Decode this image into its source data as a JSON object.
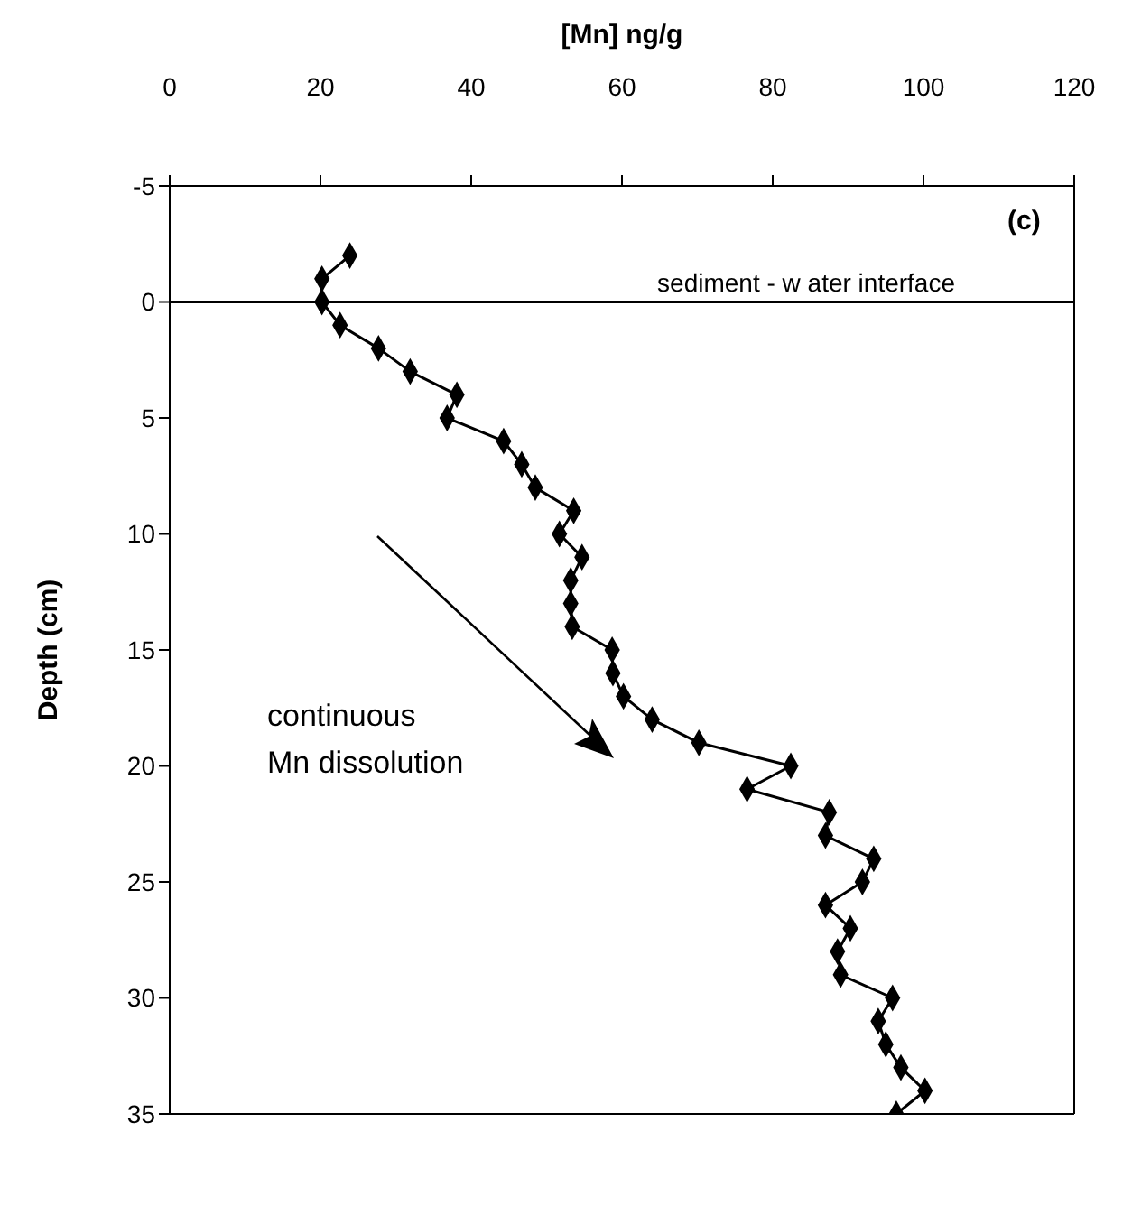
{
  "chart_data": {
    "type": "line",
    "xlabel": "[Mn] ng/g",
    "ylabel": "Depth (cm)",
    "series": [
      {
        "color": "#000000",
        "x": [
          23.9,
          20.2,
          20.2,
          22.6,
          27.7,
          31.9,
          38.1,
          36.8,
          44.3,
          46.7,
          48.5,
          53.6,
          51.7,
          54.7,
          53.2,
          53.2,
          53.4,
          58.7,
          58.8,
          60.2,
          64.0,
          70.2,
          82.4,
          76.6,
          87.5,
          87.0,
          93.4,
          91.9,
          87.0,
          90.3,
          88.6,
          89.0,
          95.9,
          94.0,
          95.0,
          97.0,
          100.2,
          96.4
        ],
        "values": [
          -2,
          -1,
          0,
          1,
          2,
          3,
          4,
          5,
          6,
          7,
          8,
          9,
          10,
          11,
          12,
          13,
          14,
          15,
          16,
          17,
          18,
          19,
          20,
          21,
          22,
          23,
          24,
          25,
          26,
          27,
          28,
          29,
          30,
          31,
          32,
          33,
          34,
          35
        ]
      }
    ],
    "xlim": [
      0,
      120
    ],
    "xticks": [
      0,
      20,
      40,
      60,
      80,
      100,
      120
    ],
    "ylim": [
      35,
      -5
    ],
    "yticks": [
      -5,
      0,
      5,
      10,
      15,
      20,
      25,
      30,
      35
    ],
    "ref_lines": [
      {
        "axis": "y",
        "value": 0,
        "label": "sediment - w ater interface",
        "color": "#000000"
      }
    ],
    "annotations": [
      "(c)",
      "continuous\nMn dissolution"
    ],
    "marker": "diamond",
    "line_style": "solid"
  }
}
